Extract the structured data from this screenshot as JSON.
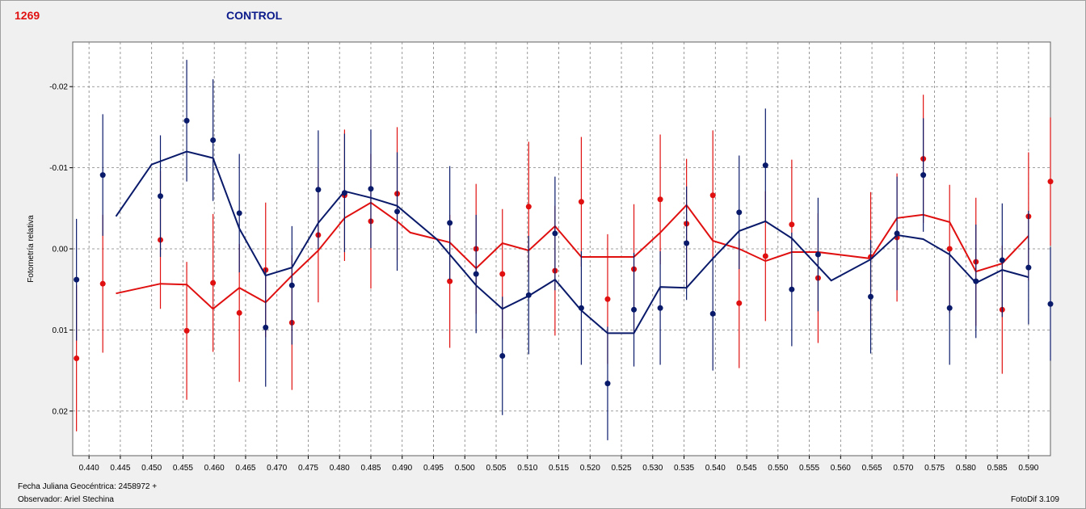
{
  "header": {
    "object_id": "1269",
    "title": "CONTROL"
  },
  "footer": {
    "jd_label": "Fecha Juliana Geocéntrica: 2458972 +",
    "observer_label": "Observador: Ariel Stechina",
    "version": "FotoDif 3.109"
  },
  "colors": {
    "series_a": "#e01010",
    "series_b": "#0a1a6a",
    "grid": "#808080"
  },
  "chart_data": {
    "type": "scatter",
    "ylabel": "Fotometría relativa",
    "xlim": [
      0.4374,
      0.5935
    ],
    "ylim": [
      0.0255,
      -0.0255
    ],
    "y_inverted": true,
    "grid": true,
    "x_ticks": [
      "0.440",
      "0.445",
      "0.450",
      "0.455",
      "0.460",
      "0.465",
      "0.470",
      "0.475",
      "0.480",
      "0.485",
      "0.490",
      "0.495",
      "0.500",
      "0.505",
      "0.510",
      "0.515",
      "0.520",
      "0.525",
      "0.530",
      "0.535",
      "0.540",
      "0.545",
      "0.550",
      "0.555",
      "0.560",
      "0.565",
      "0.570",
      "0.575",
      "0.580",
      "0.585",
      "0.590"
    ],
    "y_ticks": [
      "-0.02",
      "-0.01",
      "0.00",
      "0.01",
      "0.02"
    ],
    "series": [
      {
        "color": "#e01010",
        "points": [
          {
            "x": 0.438,
            "y": 0.0135,
            "err": 0.009
          },
          {
            "x": 0.4422,
            "y": 0.0043,
            "err": 0.0085
          },
          {
            "x": 0.4514,
            "y": -0.0011,
            "err": 0.0085
          },
          {
            "x": 0.4556,
            "y": 0.0101,
            "err": 0.0085
          },
          {
            "x": 0.4598,
            "y": 0.0042,
            "err": 0.0085
          },
          {
            "x": 0.464,
            "y": 0.0079,
            "err": 0.0085
          },
          {
            "x": 0.4682,
            "y": 0.0026,
            "err": 0.0083
          },
          {
            "x": 0.4724,
            "y": 0.0091,
            "err": 0.0083
          },
          {
            "x": 0.4766,
            "y": -0.0017,
            "err": 0.0083
          },
          {
            "x": 0.4808,
            "y": -0.0066,
            "err": 0.0081
          },
          {
            "x": 0.485,
            "y": -0.0034,
            "err": 0.0083
          },
          {
            "x": 0.4892,
            "y": -0.0068,
            "err": 0.0082
          },
          {
            "x": 0.4976,
            "y": 0.004,
            "err": 0.0082
          },
          {
            "x": 0.5018,
            "y": 0.0,
            "err": 0.008
          },
          {
            "x": 0.506,
            "y": 0.0031,
            "err": 0.008
          },
          {
            "x": 0.5102,
            "y": -0.0052,
            "err": 0.008
          },
          {
            "x": 0.5144,
            "y": 0.0027,
            "err": 0.008
          },
          {
            "x": 0.5186,
            "y": -0.0058,
            "err": 0.008
          },
          {
            "x": 0.5228,
            "y": 0.0062,
            "err": 0.008
          },
          {
            "x": 0.527,
            "y": 0.0025,
            "err": 0.008
          },
          {
            "x": 0.5312,
            "y": -0.0061,
            "err": 0.008
          },
          {
            "x": 0.5354,
            "y": -0.0031,
            "err": 0.008
          },
          {
            "x": 0.5396,
            "y": -0.0066,
            "err": 0.008
          },
          {
            "x": 0.5438,
            "y": 0.0067,
            "err": 0.008
          },
          {
            "x": 0.548,
            "y": 0.0009,
            "err": 0.008
          },
          {
            "x": 0.5522,
            "y": -0.003,
            "err": 0.008
          },
          {
            "x": 0.5564,
            "y": 0.0036,
            "err": 0.008
          },
          {
            "x": 0.5648,
            "y": 0.001,
            "err": 0.008
          },
          {
            "x": 0.569,
            "y": -0.0014,
            "err": 0.0079
          },
          {
            "x": 0.5732,
            "y": -0.0111,
            "err": 0.0079
          },
          {
            "x": 0.5774,
            "y": 0.0,
            "err": 0.0079
          },
          {
            "x": 0.5816,
            "y": 0.0016,
            "err": 0.0079
          },
          {
            "x": 0.5858,
            "y": 0.0075,
            "err": 0.0079
          },
          {
            "x": 0.59,
            "y": -0.004,
            "err": 0.0079
          },
          {
            "x": 0.5935,
            "y": -0.0083,
            "err": 0.0079
          }
        ],
        "line": [
          {
            "x": 0.4443,
            "y": 0.0055
          },
          {
            "x": 0.4514,
            "y": 0.0043
          },
          {
            "x": 0.4556,
            "y": 0.0044
          },
          {
            "x": 0.4598,
            "y": 0.0074
          },
          {
            "x": 0.464,
            "y": 0.0048
          },
          {
            "x": 0.4682,
            "y": 0.0066
          },
          {
            "x": 0.4724,
            "y": 0.0033
          },
          {
            "x": 0.4766,
            "y": 0.0002
          },
          {
            "x": 0.4808,
            "y": -0.0038
          },
          {
            "x": 0.485,
            "y": -0.0057
          },
          {
            "x": 0.4892,
            "y": -0.0034
          },
          {
            "x": 0.4913,
            "y": -0.002
          },
          {
            "x": 0.4976,
            "y": -0.0008
          },
          {
            "x": 0.5018,
            "y": 0.0024
          },
          {
            "x": 0.506,
            "y": -0.0007
          },
          {
            "x": 0.5102,
            "y": 0.0002
          },
          {
            "x": 0.5144,
            "y": -0.0028
          },
          {
            "x": 0.5186,
            "y": 0.001
          },
          {
            "x": 0.5228,
            "y": 0.001
          },
          {
            "x": 0.527,
            "y": 0.001
          },
          {
            "x": 0.5312,
            "y": -0.002
          },
          {
            "x": 0.5354,
            "y": -0.0054
          },
          {
            "x": 0.5396,
            "y": -0.001
          },
          {
            "x": 0.5438,
            "y": 0.0
          },
          {
            "x": 0.548,
            "y": 0.0015
          },
          {
            "x": 0.5522,
            "y": 0.0004
          },
          {
            "x": 0.5564,
            "y": 0.0004
          },
          {
            "x": 0.5606,
            "y": 0.0008
          },
          {
            "x": 0.5648,
            "y": 0.0012
          },
          {
            "x": 0.569,
            "y": -0.0038
          },
          {
            "x": 0.5732,
            "y": -0.0042
          },
          {
            "x": 0.5774,
            "y": -0.0033
          },
          {
            "x": 0.5816,
            "y": 0.0028
          },
          {
            "x": 0.5858,
            "y": 0.0018
          },
          {
            "x": 0.59,
            "y": -0.0016
          }
        ]
      },
      {
        "color": "#0a1a6a",
        "points": [
          {
            "x": 0.438,
            "y": 0.0038,
            "err": 0.0075
          },
          {
            "x": 0.4422,
            "y": -0.0091,
            "err": 0.0075
          },
          {
            "x": 0.4514,
            "y": -0.0065,
            "err": 0.0075
          },
          {
            "x": 0.4556,
            "y": -0.0158,
            "err": 0.0075
          },
          {
            "x": 0.4598,
            "y": -0.0134,
            "err": 0.0075
          },
          {
            "x": 0.464,
            "y": -0.0044,
            "err": 0.0073
          },
          {
            "x": 0.4682,
            "y": 0.0097,
            "err": 0.0073
          },
          {
            "x": 0.4724,
            "y": 0.0045,
            "err": 0.0073
          },
          {
            "x": 0.4766,
            "y": -0.0073,
            "err": 0.0073
          },
          {
            "x": 0.4808,
            "y": -0.0069,
            "err": 0.0073
          },
          {
            "x": 0.485,
            "y": -0.0074,
            "err": 0.0073
          },
          {
            "x": 0.4892,
            "y": -0.0046,
            "err": 0.0073
          },
          {
            "x": 0.4976,
            "y": -0.0032,
            "err": 0.007
          },
          {
            "x": 0.5018,
            "y": 0.0031,
            "err": 0.0073
          },
          {
            "x": 0.506,
            "y": 0.0132,
            "err": 0.0073
          },
          {
            "x": 0.5102,
            "y": 0.0057,
            "err": 0.0073
          },
          {
            "x": 0.5144,
            "y": -0.0019,
            "err": 0.007
          },
          {
            "x": 0.5186,
            "y": 0.0073,
            "err": 0.007
          },
          {
            "x": 0.5228,
            "y": 0.0166,
            "err": 0.007
          },
          {
            "x": 0.527,
            "y": 0.0075,
            "err": 0.007
          },
          {
            "x": 0.5312,
            "y": 0.0073,
            "err": 0.007
          },
          {
            "x": 0.5354,
            "y": -0.0007,
            "err": 0.007
          },
          {
            "x": 0.5396,
            "y": 0.008,
            "err": 0.007
          },
          {
            "x": 0.5438,
            "y": -0.0045,
            "err": 0.007
          },
          {
            "x": 0.548,
            "y": -0.0103,
            "err": 0.007
          },
          {
            "x": 0.5522,
            "y": 0.005,
            "err": 0.007
          },
          {
            "x": 0.5564,
            "y": 0.0007,
            "err": 0.007
          },
          {
            "x": 0.5648,
            "y": 0.0059,
            "err": 0.007
          },
          {
            "x": 0.569,
            "y": -0.0019,
            "err": 0.007
          },
          {
            "x": 0.5732,
            "y": -0.0091,
            "err": 0.007
          },
          {
            "x": 0.5774,
            "y": 0.0073,
            "err": 0.007
          },
          {
            "x": 0.5816,
            "y": 0.004,
            "err": 0.007
          },
          {
            "x": 0.5858,
            "y": 0.0014,
            "err": 0.007
          },
          {
            "x": 0.59,
            "y": 0.0023,
            "err": 0.007
          },
          {
            "x": 0.5935,
            "y": 0.0068,
            "err": 0.007
          }
        ],
        "line": [
          {
            "x": 0.4443,
            "y": -0.004
          },
          {
            "x": 0.45,
            "y": -0.0104
          },
          {
            "x": 0.4556,
            "y": -0.012
          },
          {
            "x": 0.4598,
            "y": -0.0112
          },
          {
            "x": 0.464,
            "y": -0.0025
          },
          {
            "x": 0.4682,
            "y": 0.0033
          },
          {
            "x": 0.4724,
            "y": 0.0023
          },
          {
            "x": 0.4766,
            "y": -0.0032
          },
          {
            "x": 0.4808,
            "y": -0.0071
          },
          {
            "x": 0.485,
            "y": -0.0063
          },
          {
            "x": 0.4892,
            "y": -0.0053
          },
          {
            "x": 0.4955,
            "y": -0.0012
          },
          {
            "x": 0.5018,
            "y": 0.0045
          },
          {
            "x": 0.506,
            "y": 0.0074
          },
          {
            "x": 0.5102,
            "y": 0.0058
          },
          {
            "x": 0.5144,
            "y": 0.0038
          },
          {
            "x": 0.5186,
            "y": 0.0076
          },
          {
            "x": 0.5228,
            "y": 0.0104
          },
          {
            "x": 0.527,
            "y": 0.0104
          },
          {
            "x": 0.5312,
            "y": 0.0047
          },
          {
            "x": 0.5354,
            "y": 0.0048
          },
          {
            "x": 0.5396,
            "y": 0.0012
          },
          {
            "x": 0.5438,
            "y": -0.0022
          },
          {
            "x": 0.548,
            "y": -0.0034
          },
          {
            "x": 0.5522,
            "y": -0.0013
          },
          {
            "x": 0.5585,
            "y": 0.0039
          },
          {
            "x": 0.5648,
            "y": 0.0013
          },
          {
            "x": 0.569,
            "y": -0.0017
          },
          {
            "x": 0.5732,
            "y": -0.0012
          },
          {
            "x": 0.5774,
            "y": 0.0007
          },
          {
            "x": 0.5816,
            "y": 0.0042
          },
          {
            "x": 0.5858,
            "y": 0.0026
          },
          {
            "x": 0.59,
            "y": 0.0035
          }
        ]
      }
    ]
  }
}
